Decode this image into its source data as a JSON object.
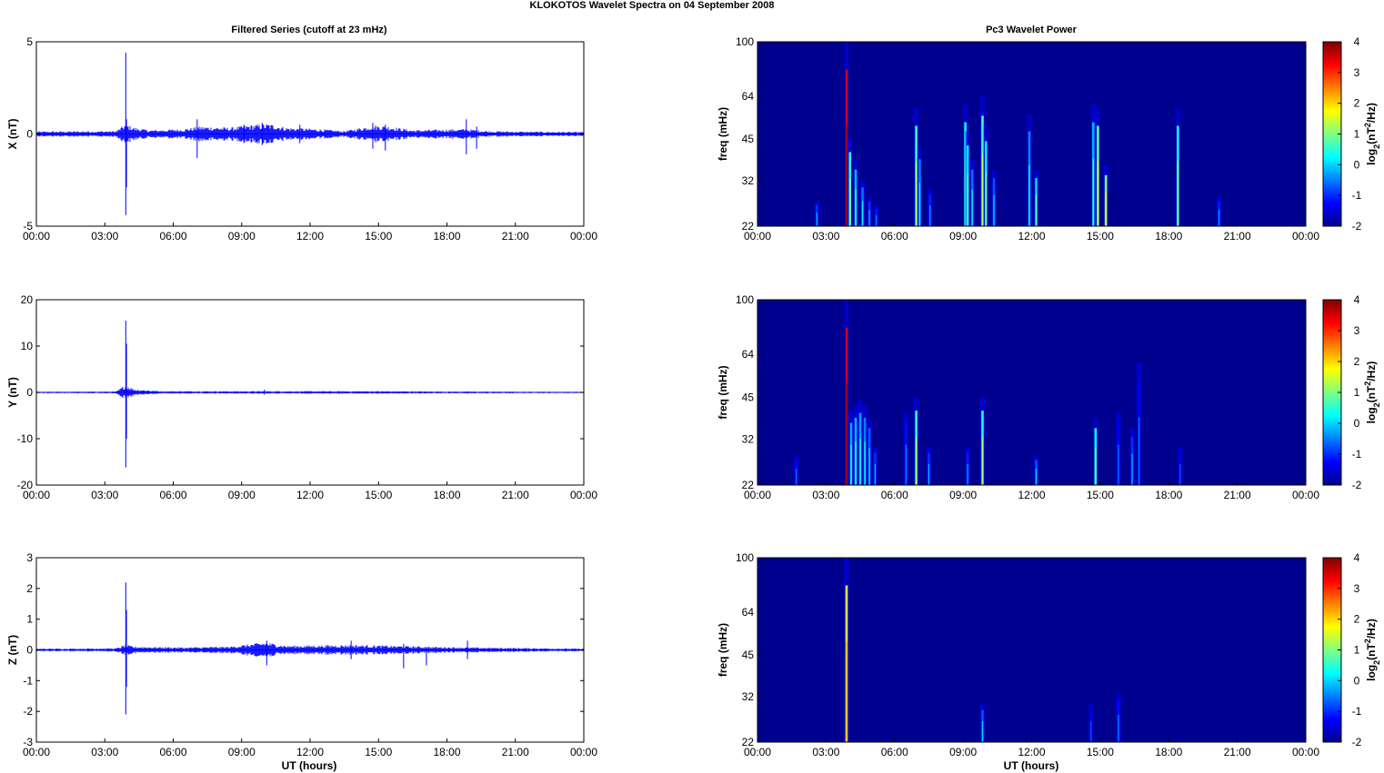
{
  "figure": {
    "title": "KLOKOTOS Wavelet Spectra on 04 September 2008",
    "left_column_title": "Filtered Series (cutoff at 23 mHz)",
    "right_column_title": "Pc3 Wavelet Power",
    "xlabel": "UT (hours)"
  },
  "colors": {
    "trace": "#0000ff",
    "spectrogram_background": "#00008f",
    "colormap": [
      "#00008f",
      "#0000ff",
      "#0080ff",
      "#00ffff",
      "#80ff80",
      "#ffff00",
      "#ff8000",
      "#ff0000",
      "#800000"
    ]
  },
  "chart_data": [
    {
      "type": "line",
      "panel": "X",
      "title": "Filtered Series (cutoff at 23 mHz)",
      "ylabel": "X (nT)",
      "xlabel": "",
      "xlim": [
        0,
        24
      ],
      "ylim": [
        -5,
        5
      ],
      "x_ticks": [
        "00:00",
        "03:00",
        "06:00",
        "09:00",
        "12:00",
        "15:00",
        "18:00",
        "21:00",
        "00:00"
      ],
      "y_ticks": [
        -5,
        0,
        5
      ],
      "baseline_noise": 0.1,
      "envelope": [
        {
          "x": 0,
          "y": 0.1
        },
        {
          "x": 3.5,
          "y": 0.12
        },
        {
          "x": 3.9,
          "y": 0.4
        },
        {
          "x": 4.3,
          "y": 0.25
        },
        {
          "x": 5.0,
          "y": 0.15
        },
        {
          "x": 6.5,
          "y": 0.2
        },
        {
          "x": 7.2,
          "y": 0.3
        },
        {
          "x": 8.5,
          "y": 0.25
        },
        {
          "x": 9.3,
          "y": 0.35
        },
        {
          "x": 10.2,
          "y": 0.4
        },
        {
          "x": 11.0,
          "y": 0.25
        },
        {
          "x": 12.3,
          "y": 0.2
        },
        {
          "x": 13.5,
          "y": 0.12
        },
        {
          "x": 14.8,
          "y": 0.35
        },
        {
          "x": 15.5,
          "y": 0.3
        },
        {
          "x": 16.5,
          "y": 0.15
        },
        {
          "x": 18.8,
          "y": 0.2
        },
        {
          "x": 19.8,
          "y": 0.12
        },
        {
          "x": 21.0,
          "y": 0.1
        },
        {
          "x": 24,
          "y": 0.08
        }
      ],
      "spikes": [
        {
          "x": 3.92,
          "max": 4.4,
          "min": -4.4
        },
        {
          "x": 3.95,
          "max": 0.8,
          "min": -2.9
        },
        {
          "x": 7.05,
          "max": 0.8,
          "min": -1.3
        },
        {
          "x": 9.1,
          "max": 0.5,
          "min": -0.5
        },
        {
          "x": 9.9,
          "max": 0.6,
          "min": -0.6
        },
        {
          "x": 11.55,
          "max": 0.5,
          "min": -0.5
        },
        {
          "x": 14.75,
          "max": 0.6,
          "min": -0.8
        },
        {
          "x": 15.3,
          "max": 0.5,
          "min": -0.9
        },
        {
          "x": 18.85,
          "max": 0.8,
          "min": -1.1
        },
        {
          "x": 19.3,
          "max": 0.4,
          "min": -0.8
        }
      ]
    },
    {
      "type": "line",
      "panel": "Y",
      "title": "",
      "ylabel": "Y (nT)",
      "xlabel": "",
      "xlim": [
        0,
        24
      ],
      "ylim": [
        -20,
        20
      ],
      "x_ticks": [
        "00:00",
        "03:00",
        "06:00",
        "09:00",
        "12:00",
        "15:00",
        "18:00",
        "21:00",
        "00:00"
      ],
      "y_ticks": [
        -20,
        -10,
        0,
        10,
        20
      ],
      "baseline_noise": 0.12,
      "envelope": [
        {
          "x": 0,
          "y": 0.1
        },
        {
          "x": 3.5,
          "y": 0.15
        },
        {
          "x": 3.9,
          "y": 1.2
        },
        {
          "x": 4.3,
          "y": 0.5
        },
        {
          "x": 5.5,
          "y": 0.2
        },
        {
          "x": 10.0,
          "y": 0.2
        },
        {
          "x": 15.0,
          "y": 0.2
        },
        {
          "x": 18.0,
          "y": 0.15
        },
        {
          "x": 24,
          "y": 0.1
        }
      ],
      "spikes": [
        {
          "x": 3.92,
          "max": 15.5,
          "min": -16.2
        },
        {
          "x": 3.95,
          "max": 10.5,
          "min": -10.0
        },
        {
          "x": 10.0,
          "max": 0.6,
          "min": -0.5
        }
      ]
    },
    {
      "type": "line",
      "panel": "Z",
      "title": "",
      "ylabel": "Z (nT)",
      "xlabel": "UT (hours)",
      "xlim": [
        0,
        24
      ],
      "ylim": [
        -3,
        3
      ],
      "x_ticks": [
        "00:00",
        "03:00",
        "06:00",
        "09:00",
        "12:00",
        "15:00",
        "18:00",
        "21:00",
        "00:00"
      ],
      "y_ticks": [
        -3,
        -2,
        -1,
        0,
        1,
        2,
        3
      ],
      "baseline_noise": 0.03,
      "envelope": [
        {
          "x": 0,
          "y": 0.03
        },
        {
          "x": 3.5,
          "y": 0.04
        },
        {
          "x": 3.9,
          "y": 0.12
        },
        {
          "x": 4.3,
          "y": 0.08
        },
        {
          "x": 6.5,
          "y": 0.06
        },
        {
          "x": 8.5,
          "y": 0.08
        },
        {
          "x": 10.0,
          "y": 0.18
        },
        {
          "x": 11.0,
          "y": 0.1
        },
        {
          "x": 13.8,
          "y": 0.12
        },
        {
          "x": 15.5,
          "y": 0.1
        },
        {
          "x": 17.0,
          "y": 0.08
        },
        {
          "x": 19.0,
          "y": 0.06
        },
        {
          "x": 24,
          "y": 0.03
        }
      ],
      "spikes": [
        {
          "x": 3.92,
          "max": 2.2,
          "min": -2.1
        },
        {
          "x": 3.95,
          "max": 1.3,
          "min": -1.2
        },
        {
          "x": 10.1,
          "max": 0.3,
          "min": -0.5
        },
        {
          "x": 13.8,
          "max": 0.3,
          "min": -0.3
        },
        {
          "x": 16.1,
          "max": 0.2,
          "min": -0.6
        },
        {
          "x": 17.1,
          "max": 0.1,
          "min": -0.5
        },
        {
          "x": 18.9,
          "max": 0.3,
          "min": -0.3
        }
      ]
    },
    {
      "type": "heatmap",
      "panel": "X",
      "title": "Pc3 Wavelet Power",
      "ylabel": "freq (mHz)",
      "xlabel": "",
      "xlim": [
        0,
        24
      ],
      "ylim": [
        22,
        100
      ],
      "y_scale": "log",
      "y_ticks": [
        22,
        32,
        45,
        64,
        100
      ],
      "x_ticks": [
        "00:00",
        "03:00",
        "06:00",
        "09:00",
        "12:00",
        "15:00",
        "18:00",
        "21:00",
        "00:00"
      ],
      "colorbar": {
        "label": "log2(nT2/Hz)",
        "ticks": [
          -2,
          -1,
          0,
          1,
          2,
          3,
          4
        ],
        "range": [
          -2,
          4
        ]
      },
      "streaks": [
        {
          "x": 2.6,
          "fmax": 27,
          "level": -1.0
        },
        {
          "x": 3.9,
          "fmax": 100,
          "level": 3.5
        },
        {
          "x": 4.05,
          "fmax": 45,
          "level": 0.5
        },
        {
          "x": 4.3,
          "fmax": 38,
          "level": -0.2
        },
        {
          "x": 4.6,
          "fmax": 32,
          "level": -0.6
        },
        {
          "x": 4.9,
          "fmax": 28,
          "level": -1.0
        },
        {
          "x": 5.2,
          "fmax": 26,
          "level": -1.2
        },
        {
          "x": 6.95,
          "fmax": 58,
          "level": 0.6
        },
        {
          "x": 7.1,
          "fmax": 42,
          "level": -0.5
        },
        {
          "x": 7.55,
          "fmax": 30,
          "level": -1.1
        },
        {
          "x": 9.1,
          "fmax": 60,
          "level": 0.3
        },
        {
          "x": 9.2,
          "fmax": 48,
          "level": 0.1
        },
        {
          "x": 9.4,
          "fmax": 38,
          "level": -0.6
        },
        {
          "x": 9.85,
          "fmax": 64,
          "level": 0.6
        },
        {
          "x": 10.0,
          "fmax": 50,
          "level": 0.2
        },
        {
          "x": 10.35,
          "fmax": 35,
          "level": -0.8
        },
        {
          "x": 11.9,
          "fmax": 55,
          "level": -0.5
        },
        {
          "x": 12.2,
          "fmax": 35,
          "level": 0.0
        },
        {
          "x": 14.7,
          "fmax": 60,
          "level": -0.2
        },
        {
          "x": 14.9,
          "fmax": 58,
          "level": 0.8
        },
        {
          "x": 15.25,
          "fmax": 36,
          "level": 1.0
        },
        {
          "x": 18.4,
          "fmax": 58,
          "level": 0.4
        },
        {
          "x": 20.2,
          "fmax": 28,
          "level": -1.1
        }
      ]
    },
    {
      "type": "heatmap",
      "panel": "Y",
      "title": "",
      "ylabel": "freq (mHz)",
      "xlabel": "",
      "xlim": [
        0,
        24
      ],
      "ylim": [
        22,
        100
      ],
      "y_scale": "log",
      "y_ticks": [
        22,
        32,
        45,
        64,
        100
      ],
      "x_ticks": [
        "00:00",
        "03:00",
        "06:00",
        "09:00",
        "12:00",
        "15:00",
        "18:00",
        "21:00",
        "00:00"
      ],
      "colorbar": {
        "label": "log2(nT2/Hz)",
        "ticks": [
          -2,
          -1,
          0,
          1,
          2,
          3,
          4
        ],
        "range": [
          -2,
          4
        ]
      },
      "streaks": [
        {
          "x": 1.7,
          "fmax": 28,
          "level": -1.3
        },
        {
          "x": 3.9,
          "fmax": 100,
          "level": 3.5
        },
        {
          "x": 4.1,
          "fmax": 40,
          "level": -0.3
        },
        {
          "x": 4.3,
          "fmax": 42,
          "level": -0.2
        },
        {
          "x": 4.5,
          "fmax": 44,
          "level": -0.3
        },
        {
          "x": 4.7,
          "fmax": 42,
          "level": -0.5
        },
        {
          "x": 4.9,
          "fmax": 38,
          "level": -0.7
        },
        {
          "x": 5.15,
          "fmax": 30,
          "level": -1.0
        },
        {
          "x": 6.5,
          "fmax": 40,
          "level": -1.2
        },
        {
          "x": 6.95,
          "fmax": 45,
          "level": 0.5
        },
        {
          "x": 7.5,
          "fmax": 30,
          "level": -1.0
        },
        {
          "x": 9.2,
          "fmax": 30,
          "level": -1.1
        },
        {
          "x": 9.85,
          "fmax": 45,
          "level": 0.4
        },
        {
          "x": 12.2,
          "fmax": 28,
          "level": -0.8
        },
        {
          "x": 14.8,
          "fmax": 38,
          "level": 0.3
        },
        {
          "x": 15.8,
          "fmax": 40,
          "level": -1.3
        },
        {
          "x": 16.4,
          "fmax": 35,
          "level": -1.0
        },
        {
          "x": 16.7,
          "fmax": 60,
          "level": -1.3
        },
        {
          "x": 18.5,
          "fmax": 30,
          "level": -1.5
        }
      ]
    },
    {
      "type": "heatmap",
      "panel": "Z",
      "title": "",
      "ylabel": "freq (mHz)",
      "xlabel": "UT (hours)",
      "xlim": [
        0,
        24
      ],
      "ylim": [
        22,
        100
      ],
      "y_scale": "log",
      "y_ticks": [
        22,
        32,
        45,
        64,
        100
      ],
      "x_ticks": [
        "00:00",
        "03:00",
        "06:00",
        "09:00",
        "12:00",
        "15:00",
        "18:00",
        "21:00",
        "00:00"
      ],
      "colorbar": {
        "label": "log2(nT2/Hz)",
        "ticks": [
          -2,
          -1,
          0,
          1,
          2,
          3,
          4
        ],
        "range": [
          -2,
          4
        ]
      },
      "streaks": [
        {
          "x": 3.9,
          "fmax": 100,
          "level": 1.5
        },
        {
          "x": 9.85,
          "fmax": 30,
          "level": -0.8
        },
        {
          "x": 14.6,
          "fmax": 30,
          "level": -1.5
        },
        {
          "x": 15.8,
          "fmax": 33,
          "level": -1.2
        }
      ]
    }
  ]
}
